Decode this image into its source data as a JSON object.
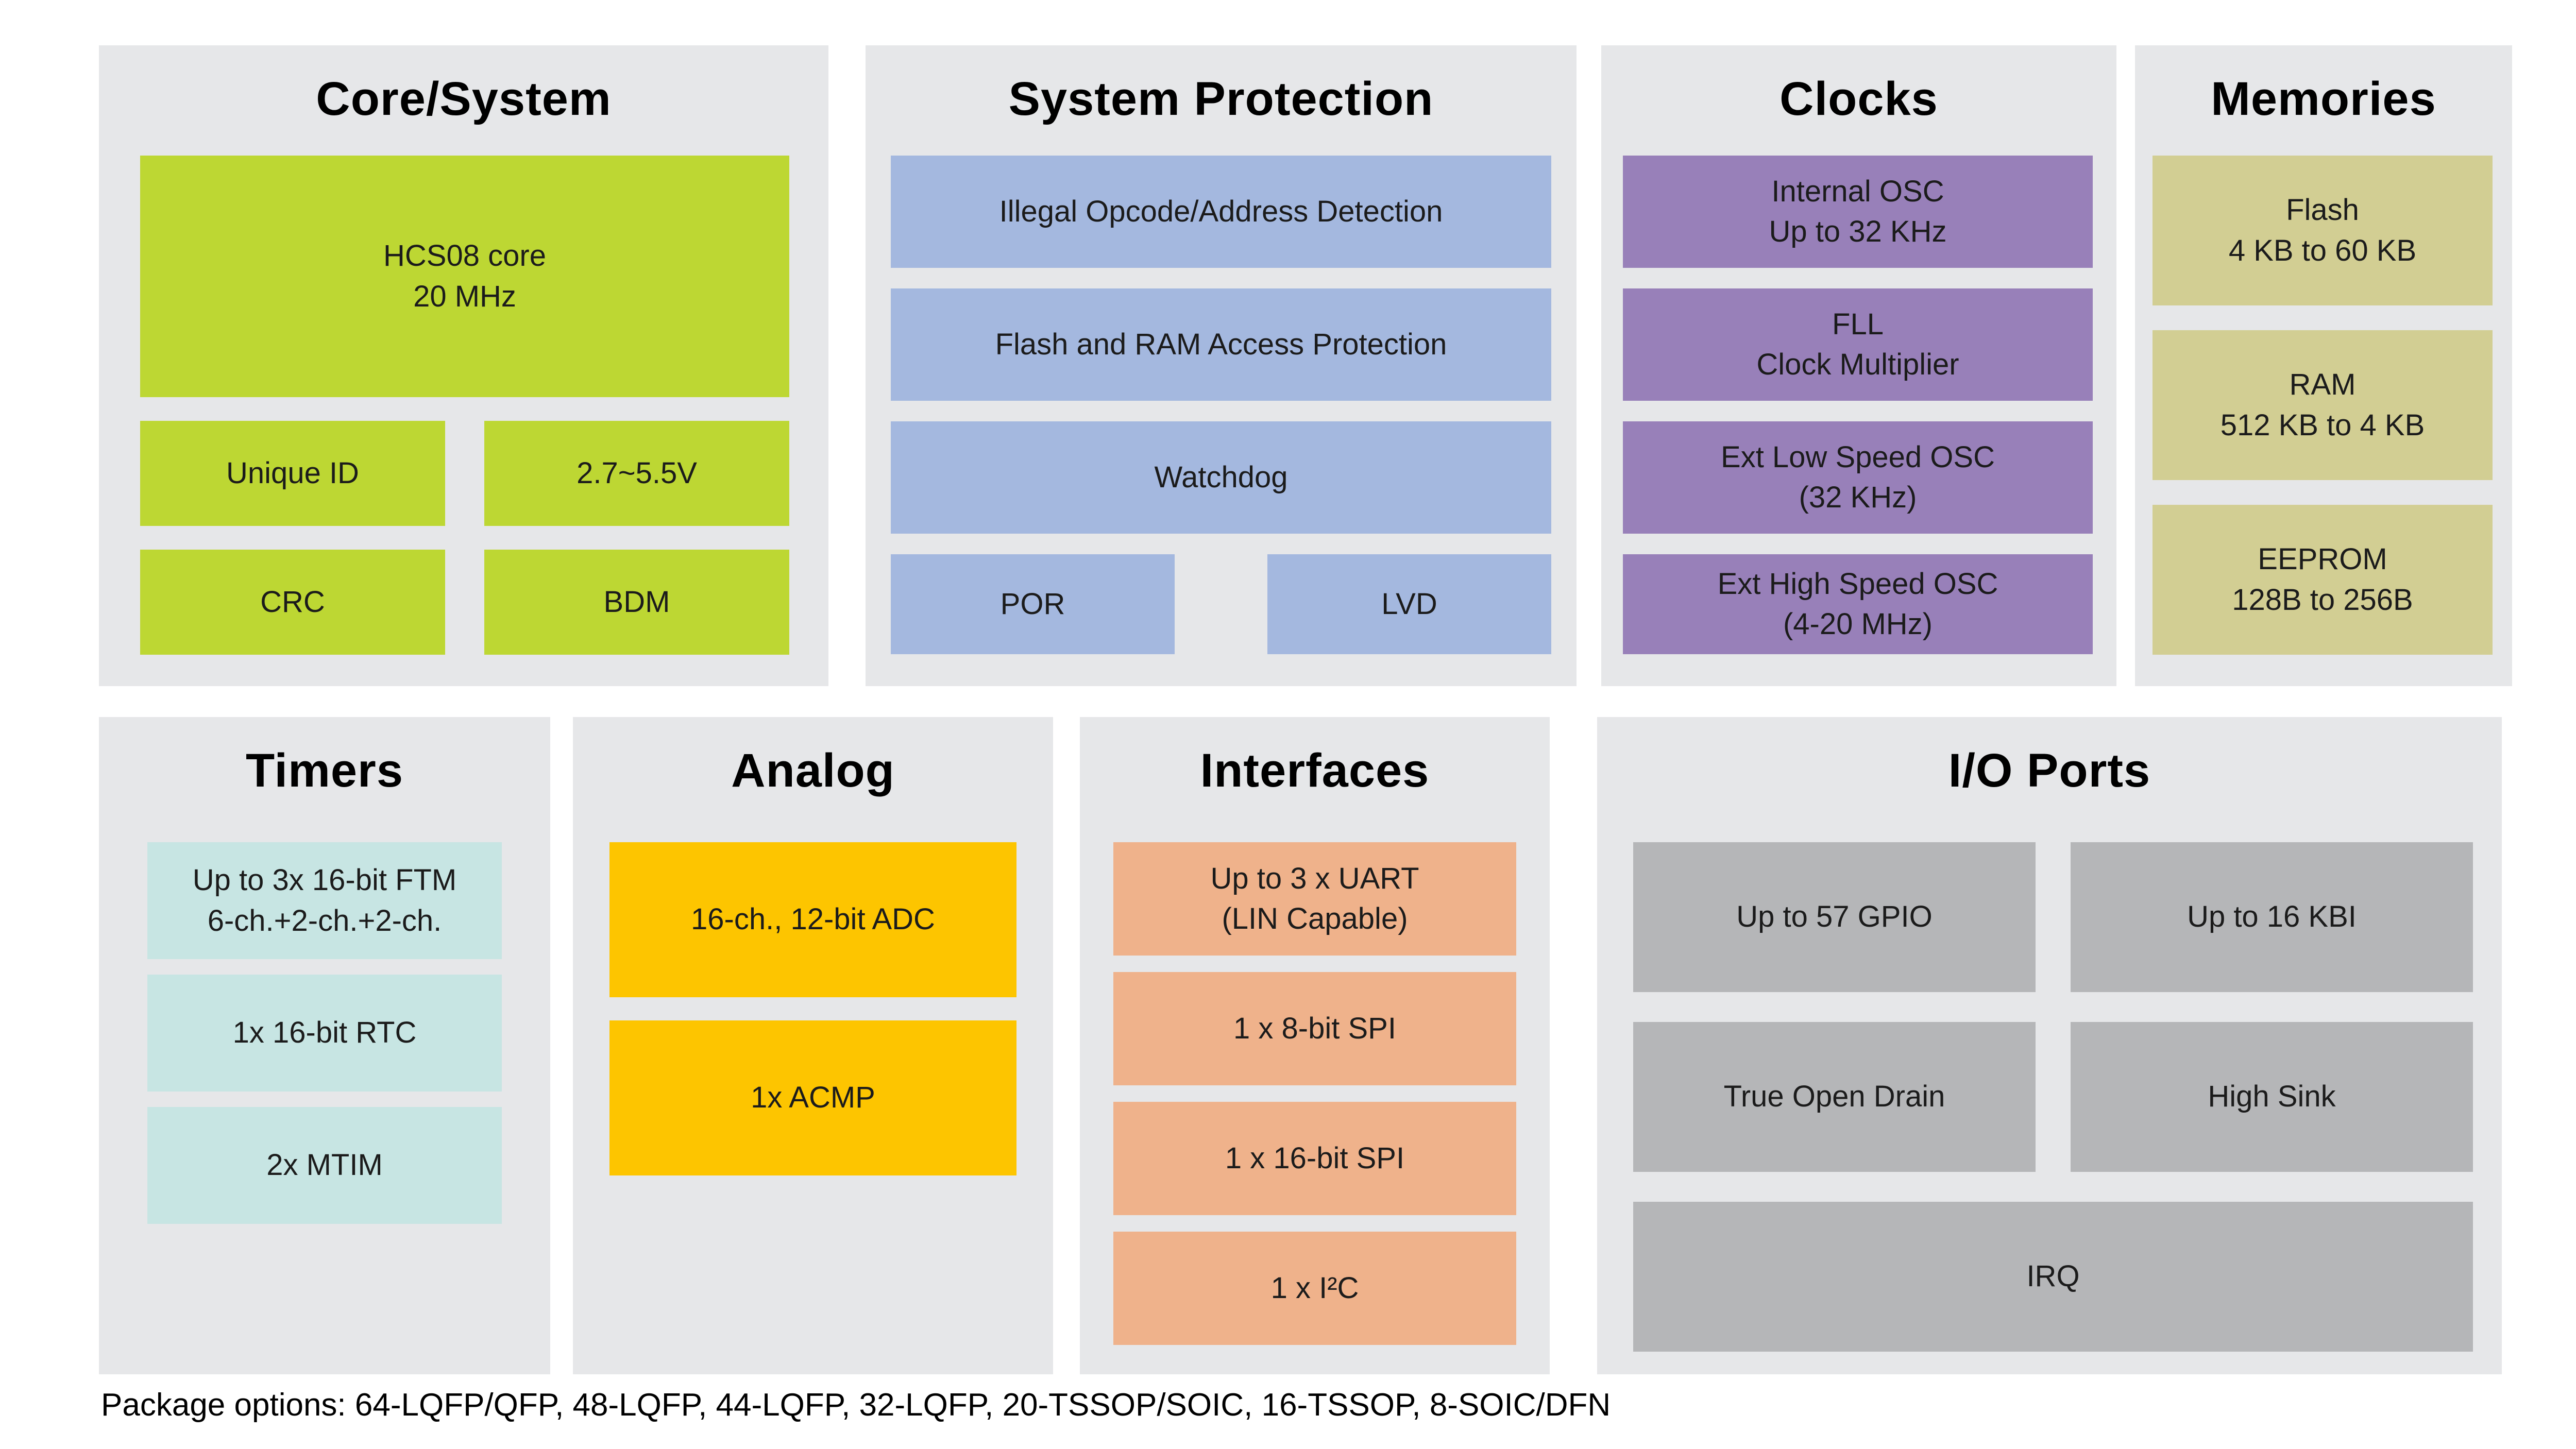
{
  "page": {
    "footer": "Package options: 64-LQFP/QFP, 48-LQFP, 44-LQFP, 32-LQFP, 20-TSSOP/SOIC, 16-TSSOP, 8-SOIC/DFN"
  },
  "colors": {
    "page_background": "#ffffff",
    "panel_background": "#e6e7e9",
    "core_system": "#bdd733",
    "system_protection": "#a4b8df",
    "clocks": "#9880b9",
    "memories": "#d2ce93",
    "timers": "#c7e5e3",
    "analog": "#fdc500",
    "interfaces": "#efb28b",
    "io_ports": "#b5b6b8",
    "text": "#1b1b1b"
  },
  "panels": {
    "core_system": {
      "title": "Core/System",
      "blocks": {
        "core": "HCS08 core\n20 MHz",
        "unique_id": "Unique ID",
        "voltage": "2.7~5.5V",
        "crc": "CRC",
        "bdm": "BDM"
      }
    },
    "system_protection": {
      "title": "System Protection",
      "blocks": {
        "illegal_opcode": "Illegal Opcode/Address Detection",
        "flash_ram_protection": "Flash and RAM Access Protection",
        "watchdog": "Watchdog",
        "por": "POR",
        "lvd": "LVD"
      }
    },
    "clocks": {
      "title": "Clocks",
      "blocks": {
        "internal_osc": "Internal OSC\nUp to 32 KHz",
        "fll": "FLL\nClock Multiplier",
        "ext_low_speed_osc": "Ext Low Speed OSC\n(32 KHz)",
        "ext_high_speed_osc": "Ext High Speed OSC\n(4-20 MHz)"
      }
    },
    "memories": {
      "title": "Memories",
      "blocks": {
        "flash": "Flash\n4 KB to 60 KB",
        "ram": "RAM\n512 KB to 4 KB",
        "eeprom": "EEPROM\n128B to 256B"
      }
    },
    "timers": {
      "title": "Timers",
      "blocks": {
        "ftm": "Up to 3x 16-bit FTM\n6-ch.+2-ch.+2-ch.",
        "rtc": "1x 16-bit RTC",
        "mtim": "2x MTIM"
      }
    },
    "analog": {
      "title": "Analog",
      "blocks": {
        "adc": "16-ch., 12-bit ADC",
        "acmp": "1x ACMP"
      }
    },
    "interfaces": {
      "title": "Interfaces",
      "blocks": {
        "uart": "Up to 3 x UART\n(LIN Capable)",
        "spi8": "1 x 8-bit SPI",
        "spi16": "1 x 16-bit SPI",
        "i2c": "1 x I²C"
      }
    },
    "io_ports": {
      "title": "I/O Ports",
      "blocks": {
        "gpio": "Up to 57 GPIO",
        "kbi": "Up to 16 KBI",
        "open_drain": "True Open Drain",
        "high_sink": "High Sink",
        "irq": "IRQ"
      }
    }
  }
}
